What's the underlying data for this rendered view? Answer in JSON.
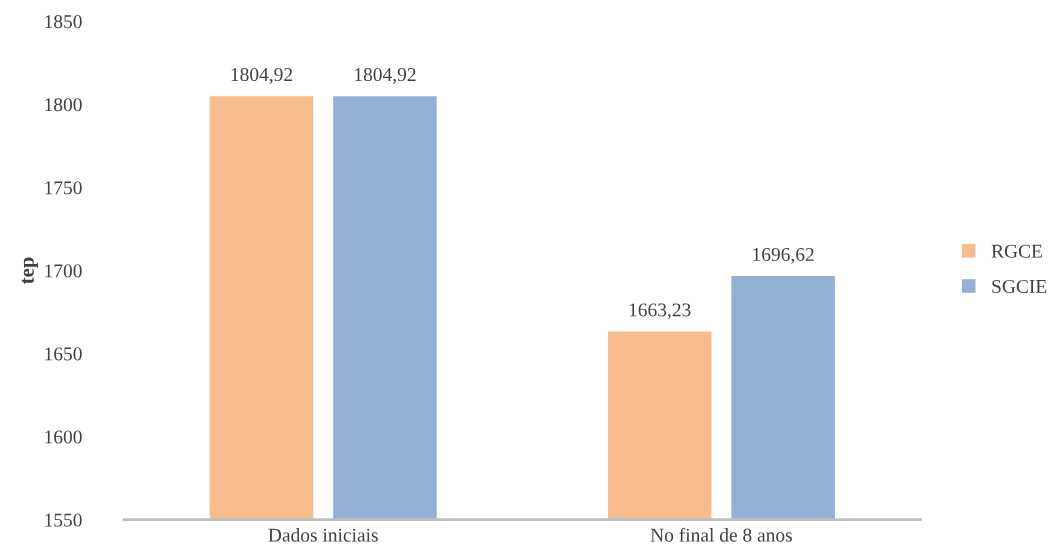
{
  "chart_data": {
    "type": "bar",
    "ylabel": "tep",
    "categories": [
      "Dados iniciais",
      "No final de 8 anos"
    ],
    "series": [
      {
        "name": "RGCE",
        "color": "#f7bd8c",
        "values": [
          1804.92,
          1663.23
        ],
        "value_labels": [
          "1804,92",
          "1663,23"
        ]
      },
      {
        "name": "SGCIE",
        "color": "#93b1d7",
        "values": [
          1804.92,
          1696.62
        ],
        "value_labels": [
          "1804,92",
          "1696,62"
        ]
      }
    ],
    "ylim": [
      1550,
      1850
    ],
    "yticks": [
      1550,
      1600,
      1650,
      1700,
      1750,
      1800,
      1850
    ],
    "grid": false,
    "legend": "right"
  }
}
